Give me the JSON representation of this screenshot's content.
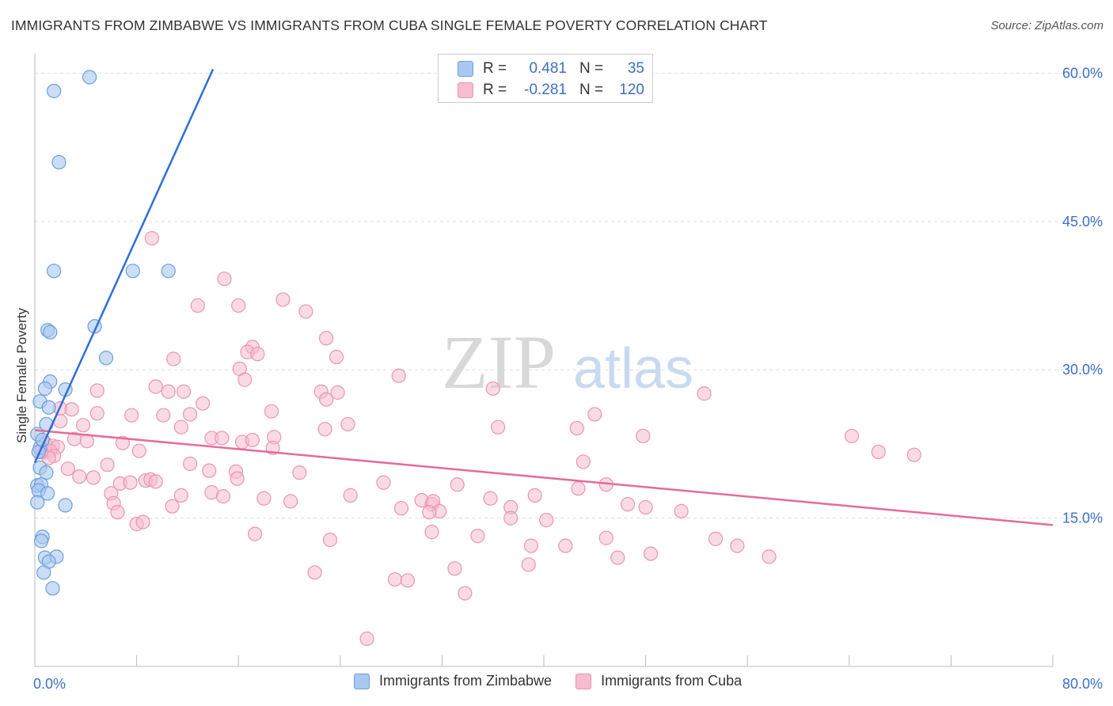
{
  "header": {
    "title": "IMMIGRANTS FROM ZIMBABWE VS IMMIGRANTS FROM CUBA SINGLE FEMALE POVERTY CORRELATION CHART",
    "source": "Source: ZipAtlas.com"
  },
  "watermark": {
    "zip": "ZIP",
    "atlas": "atlas"
  },
  "colors": {
    "zimbabwe_fill": "#a9c8ef",
    "zimbabwe_stroke": "#6b9ee0",
    "zimbabwe_line": "#2e6fd4",
    "cuba_fill": "#f6bcd0",
    "cuba_stroke": "#eb94b3",
    "cuba_line": "#e66b9a",
    "axis_label": "#3d6fc6",
    "grid": "#dddddd"
  },
  "stats": {
    "rows": [
      {
        "r_label": "R =",
        "r_value": "0.481",
        "n_label": "N =",
        "n_value": "35"
      },
      {
        "r_label": "R =",
        "r_value": "-0.281",
        "n_label": "N =",
        "n_value": "120"
      }
    ]
  },
  "legend": {
    "items": [
      {
        "label": "Immigrants from Zimbabwe"
      },
      {
        "label": "Immigrants from Cuba"
      }
    ]
  },
  "chart_data": {
    "type": "scatter",
    "title": "IMMIGRANTS FROM ZIMBABWE VS IMMIGRANTS FROM CUBA SINGLE FEMALE POVERTY CORRELATION CHART",
    "xlabel": "",
    "ylabel": "Single Female Poverty",
    "xlim": [
      0,
      80
    ],
    "ylim": [
      0,
      61
    ],
    "x_tick_labels": [
      "0.0%",
      "80.0%"
    ],
    "y_ticks": [
      15,
      30,
      45,
      60
    ],
    "y_tick_labels": [
      "15.0%",
      "30.0%",
      "45.0%",
      "60.0%"
    ],
    "grid": true,
    "series": [
      {
        "name": "Immigrants from Zimbabwe",
        "r": 0.481,
        "n": 35,
        "trend": {
          "x": [
            0,
            14.0
          ],
          "y": [
            20.6,
            60.4
          ]
        },
        "points": [
          [
            4.3,
            59.6
          ],
          [
            1.5,
            58.2
          ],
          [
            1.9,
            51.0
          ],
          [
            1.5,
            40.0
          ],
          [
            7.7,
            40.0
          ],
          [
            10.5,
            40.0
          ],
          [
            1.0,
            34.0
          ],
          [
            1.2,
            33.8
          ],
          [
            4.7,
            34.4
          ],
          [
            5.6,
            31.2
          ],
          [
            1.2,
            28.8
          ],
          [
            0.8,
            28.1
          ],
          [
            2.4,
            28.0
          ],
          [
            0.4,
            26.8
          ],
          [
            1.1,
            26.2
          ],
          [
            0.9,
            24.5
          ],
          [
            0.4,
            22.1
          ],
          [
            0.3,
            21.7
          ],
          [
            0.4,
            20.1
          ],
          [
            0.9,
            19.6
          ],
          [
            0.2,
            18.3
          ],
          [
            0.5,
            18.4
          ],
          [
            0.3,
            17.8
          ],
          [
            1.0,
            17.5
          ],
          [
            0.2,
            16.6
          ],
          [
            2.4,
            16.3
          ],
          [
            0.6,
            13.1
          ],
          [
            0.5,
            12.7
          ],
          [
            0.8,
            11.0
          ],
          [
            1.7,
            11.1
          ],
          [
            1.1,
            10.6
          ],
          [
            0.7,
            9.5
          ],
          [
            1.4,
            7.9
          ],
          [
            0.2,
            23.5
          ],
          [
            0.6,
            22.9
          ]
        ]
      },
      {
        "name": "Immigrants from Cuba",
        "r": -0.281,
        "n": 120,
        "trend": {
          "x": [
            0,
            80
          ],
          "y": [
            23.9,
            14.3
          ]
        },
        "points": [
          [
            9.2,
            43.3
          ],
          [
            14.9,
            39.2
          ],
          [
            12.8,
            36.5
          ],
          [
            16.0,
            36.5
          ],
          [
            19.5,
            37.1
          ],
          [
            21.3,
            35.9
          ],
          [
            22.9,
            33.2
          ],
          [
            17.1,
            32.3
          ],
          [
            16.7,
            31.8
          ],
          [
            17.5,
            31.6
          ],
          [
            10.9,
            31.1
          ],
          [
            23.7,
            31.3
          ],
          [
            16.1,
            30.1
          ],
          [
            28.6,
            29.4
          ],
          [
            16.5,
            29.0
          ],
          [
            9.5,
            28.3
          ],
          [
            10.5,
            27.8
          ],
          [
            11.7,
            27.8
          ],
          [
            22.5,
            27.8
          ],
          [
            23.8,
            27.7
          ],
          [
            36.0,
            28.1
          ],
          [
            4.9,
            27.9
          ],
          [
            22.9,
            27.0
          ],
          [
            13.2,
            26.6
          ],
          [
            2.0,
            26.1
          ],
          [
            2.9,
            26.0
          ],
          [
            4.9,
            25.6
          ],
          [
            7.6,
            25.4
          ],
          [
            10.1,
            25.4
          ],
          [
            12.2,
            25.5
          ],
          [
            18.6,
            25.8
          ],
          [
            52.6,
            27.6
          ],
          [
            44.0,
            25.5
          ],
          [
            2.0,
            24.8
          ],
          [
            3.8,
            24.4
          ],
          [
            11.5,
            24.2
          ],
          [
            22.8,
            24.0
          ],
          [
            24.6,
            24.5
          ],
          [
            36.4,
            24.2
          ],
          [
            42.6,
            24.1
          ],
          [
            3.1,
            23.0
          ],
          [
            4.1,
            22.8
          ],
          [
            13.9,
            23.1
          ],
          [
            16.3,
            22.7
          ],
          [
            17.1,
            22.9
          ],
          [
            18.8,
            23.2
          ],
          [
            6.9,
            22.6
          ],
          [
            0.8,
            22.6
          ],
          [
            1.4,
            22.3
          ],
          [
            1.8,
            22.2
          ],
          [
            0.8,
            21.7
          ],
          [
            1.2,
            21.8
          ],
          [
            18.7,
            22.1
          ],
          [
            8.2,
            21.8
          ],
          [
            1.5,
            21.3
          ],
          [
            1.1,
            21.1
          ],
          [
            0.5,
            21.7
          ],
          [
            47.8,
            23.3
          ],
          [
            64.2,
            23.3
          ],
          [
            66.3,
            21.7
          ],
          [
            69.1,
            21.4
          ],
          [
            5.7,
            20.4
          ],
          [
            12.2,
            20.5
          ],
          [
            2.6,
            20.0
          ],
          [
            13.7,
            19.8
          ],
          [
            15.8,
            19.7
          ],
          [
            20.8,
            19.6
          ],
          [
            3.5,
            19.2
          ],
          [
            4.6,
            19.1
          ],
          [
            8.7,
            18.8
          ],
          [
            9.1,
            18.9
          ],
          [
            15.9,
            19.0
          ],
          [
            6.7,
            18.5
          ],
          [
            7.5,
            18.6
          ],
          [
            9.5,
            18.7
          ],
          [
            27.4,
            18.6
          ],
          [
            33.2,
            18.4
          ],
          [
            43.1,
            20.7
          ],
          [
            42.7,
            18.0
          ],
          [
            44.9,
            18.4
          ],
          [
            6.0,
            17.5
          ],
          [
            11.5,
            17.3
          ],
          [
            13.9,
            17.6
          ],
          [
            18.0,
            17.0
          ],
          [
            20.1,
            16.7
          ],
          [
            24.8,
            17.3
          ],
          [
            35.8,
            17.0
          ],
          [
            39.3,
            17.3
          ],
          [
            6.2,
            16.5
          ],
          [
            10.8,
            16.2
          ],
          [
            14.8,
            17.2
          ],
          [
            28.8,
            16.0
          ],
          [
            30.4,
            16.8
          ],
          [
            31.2,
            16.4
          ],
          [
            31.3,
            16.7
          ],
          [
            31.8,
            15.7
          ],
          [
            37.4,
            16.1
          ],
          [
            46.6,
            16.4
          ],
          [
            48.0,
            16.1
          ],
          [
            6.5,
            15.6
          ],
          [
            31.0,
            15.6
          ],
          [
            37.4,
            15.0
          ],
          [
            40.2,
            14.8
          ],
          [
            50.8,
            15.7
          ],
          [
            8.0,
            14.4
          ],
          [
            8.5,
            14.6
          ],
          [
            17.3,
            13.4
          ],
          [
            31.2,
            13.6
          ],
          [
            23.2,
            12.8
          ],
          [
            34.8,
            13.2
          ],
          [
            44.9,
            13.0
          ],
          [
            53.5,
            12.9
          ],
          [
            41.7,
            12.2
          ],
          [
            55.2,
            12.2
          ],
          [
            45.8,
            11.0
          ],
          [
            57.7,
            11.1
          ],
          [
            39.0,
            12.2
          ],
          [
            33.0,
            9.9
          ],
          [
            22.0,
            9.5
          ],
          [
            38.8,
            10.3
          ],
          [
            28.3,
            8.8
          ],
          [
            29.3,
            8.7
          ],
          [
            33.8,
            7.4
          ],
          [
            26.1,
            2.8
          ],
          [
            48.4,
            11.4
          ],
          [
            14.7,
            23.1
          ]
        ]
      }
    ]
  }
}
